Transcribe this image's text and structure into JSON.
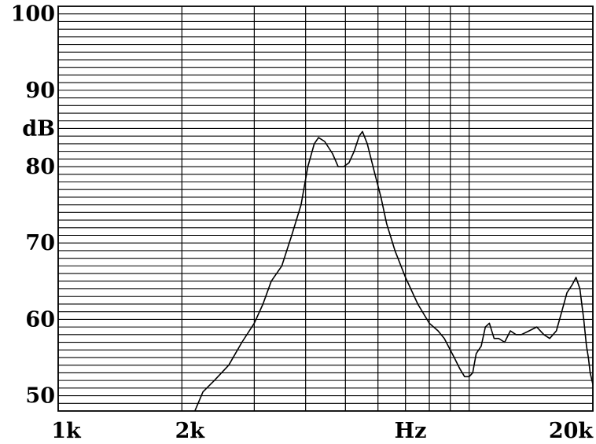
{
  "chart_data": {
    "type": "line",
    "x_scale": "log",
    "xlim": [
      1000,
      20000
    ],
    "ylim": [
      48,
      101
    ],
    "grid": true,
    "y_unit": "dB",
    "x_unit": "Hz",
    "y_ticks": [
      {
        "value": 100,
        "label": "100"
      },
      {
        "value": 90,
        "label": "90"
      },
      {
        "value": 80,
        "label": "80"
      },
      {
        "value": 70,
        "label": "70"
      },
      {
        "value": 60,
        "label": "60"
      },
      {
        "value": 50,
        "label": "50"
      }
    ],
    "x_ticks": [
      {
        "value": 1000,
        "label": "1k"
      },
      {
        "value": 2000,
        "label": "2k"
      },
      {
        "value": 20000,
        "label": "20k"
      }
    ],
    "x_gridlines": [
      1000,
      2000,
      3000,
      4000,
      5000,
      6000,
      7000,
      8000,
      9000,
      10000,
      20000
    ],
    "y_gridlines": [
      48,
      49,
      50,
      51,
      52,
      53,
      54,
      55,
      56,
      57,
      58,
      59,
      60,
      61,
      62,
      63,
      64,
      65,
      66,
      67,
      68,
      69,
      70,
      71,
      72,
      73,
      74,
      75,
      76,
      77,
      78,
      79,
      80,
      81,
      82,
      83,
      84,
      85,
      86,
      87,
      88,
      89,
      90,
      91,
      92,
      93,
      94,
      95,
      96,
      97,
      98,
      99,
      100
    ],
    "series": [
      {
        "values": [
          [
            2150,
            48
          ],
          [
            2250,
            50.5
          ],
          [
            2400,
            52
          ],
          [
            2600,
            54
          ],
          [
            2800,
            57
          ],
          [
            3000,
            59.5
          ],
          [
            3150,
            62
          ],
          [
            3300,
            65
          ],
          [
            3500,
            67
          ],
          [
            3700,
            71
          ],
          [
            3900,
            75
          ],
          [
            4050,
            80
          ],
          [
            4200,
            83
          ],
          [
            4300,
            83.8
          ],
          [
            4450,
            83.3
          ],
          [
            4650,
            81.7
          ],
          [
            4800,
            80
          ],
          [
            4950,
            80
          ],
          [
            5100,
            80.5
          ],
          [
            5250,
            82
          ],
          [
            5400,
            84
          ],
          [
            5500,
            84.6
          ],
          [
            5650,
            83
          ],
          [
            5900,
            79
          ],
          [
            6100,
            76
          ],
          [
            6300,
            72.5
          ],
          [
            6600,
            69
          ],
          [
            7000,
            65.5
          ],
          [
            7500,
            62
          ],
          [
            8000,
            59.5
          ],
          [
            8400,
            58.5
          ],
          [
            8700,
            57.5
          ],
          [
            9200,
            55
          ],
          [
            9500,
            53.5
          ],
          [
            9750,
            52.5
          ],
          [
            10000,
            52.5
          ],
          [
            10200,
            53
          ],
          [
            10400,
            55.5
          ],
          [
            10700,
            56.5
          ],
          [
            10950,
            59
          ],
          [
            11200,
            59.5
          ],
          [
            11500,
            57.5
          ],
          [
            11800,
            57.5
          ],
          [
            12200,
            57
          ],
          [
            12600,
            58.5
          ],
          [
            13000,
            58
          ],
          [
            13400,
            58
          ],
          [
            14000,
            58.5
          ],
          [
            14600,
            59
          ],
          [
            15200,
            58
          ],
          [
            15700,
            57.5
          ],
          [
            16300,
            58.5
          ],
          [
            16800,
            61
          ],
          [
            17300,
            63.5
          ],
          [
            17800,
            64.5
          ],
          [
            18200,
            65.5
          ],
          [
            18600,
            64
          ],
          [
            19000,
            60
          ],
          [
            19300,
            56.5
          ],
          [
            19500,
            55
          ],
          [
            19700,
            53
          ],
          [
            20000,
            51.5
          ],
          [
            20500,
            51
          ],
          [
            21000,
            50.2
          ]
        ]
      }
    ]
  }
}
